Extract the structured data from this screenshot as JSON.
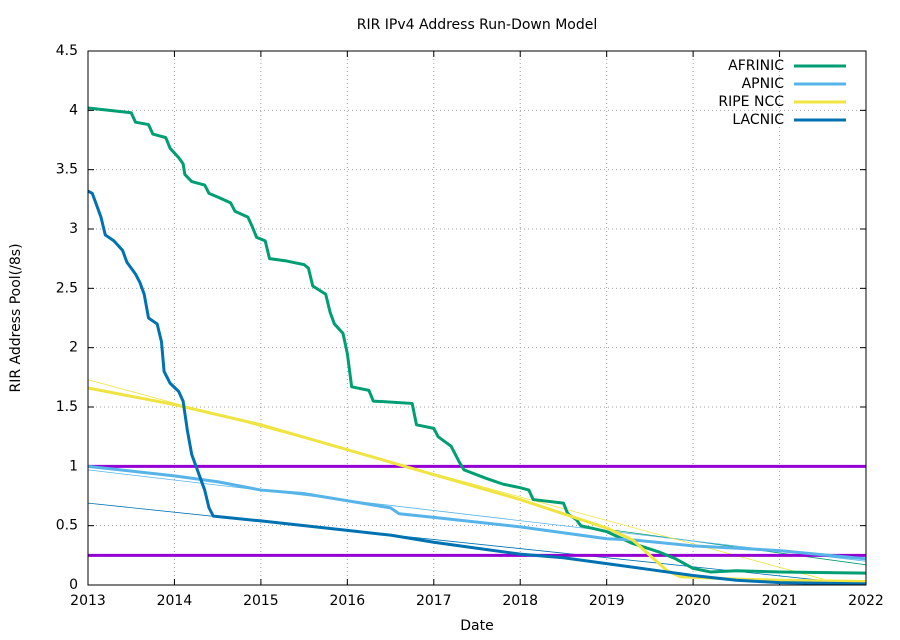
{
  "chart_data": {
    "type": "line",
    "title": "RIR IPv4 Address Run-Down Model",
    "x_label": "Date",
    "y_label": "RIR Address Pool(/8s)",
    "xlim": [
      2013,
      2022
    ],
    "xticks": [
      2013,
      2014,
      2015,
      2016,
      2017,
      2018,
      2019,
      2020,
      2021,
      2022
    ],
    "ylim": [
      0,
      4.5
    ],
    "yticks": [
      0,
      0.5,
      1,
      1.5,
      2,
      2.5,
      3,
      3.5,
      4,
      4.5
    ],
    "grid": true,
    "legend": "top-right",
    "series": [
      {
        "name": "AFRINIC",
        "color": "#009e73",
        "x": [
          2013,
          2013.25,
          2013.5,
          2013.55,
          2013.7,
          2013.75,
          2013.9,
          2013.95,
          2014.05,
          2014.1,
          2014.12,
          2014.2,
          2014.35,
          2014.4,
          2014.5,
          2014.65,
          2014.7,
          2014.85,
          2014.9,
          2014.95,
          2015.05,
          2015.1,
          2015.3,
          2015.5,
          2015.55,
          2015.6,
          2015.75,
          2015.8,
          2015.85,
          2015.95,
          2016.0,
          2016.05,
          2016.25,
          2016.3,
          2016.75,
          2016.8,
          2017.0,
          2017.05,
          2017.2,
          2017.3,
          2017.35,
          2017.6,
          2017.8,
          2018.0,
          2018.1,
          2018.15,
          2018.5,
          2018.55,
          2018.65,
          2018.7,
          2019.0,
          2019.3,
          2019.6,
          2019.8,
          2020.0,
          2020.2,
          2020.5,
          2021.0,
          2022
        ],
        "values": [
          4.02,
          4.0,
          3.98,
          3.9,
          3.88,
          3.8,
          3.77,
          3.68,
          3.6,
          3.55,
          3.46,
          3.4,
          3.37,
          3.3,
          3.27,
          3.22,
          3.15,
          3.1,
          3.02,
          2.93,
          2.9,
          2.75,
          2.73,
          2.7,
          2.67,
          2.52,
          2.45,
          2.3,
          2.2,
          2.12,
          1.95,
          1.67,
          1.64,
          1.55,
          1.53,
          1.35,
          1.32,
          1.25,
          1.17,
          1.03,
          0.97,
          0.9,
          0.85,
          0.82,
          0.8,
          0.72,
          0.69,
          0.6,
          0.55,
          0.5,
          0.45,
          0.35,
          0.28,
          0.22,
          0.14,
          0.11,
          0.12,
          0.11,
          0.1
        ]
      },
      {
        "name": "APNIC",
        "color": "#56b4e9",
        "x": [
          2013,
          2014,
          2014.5,
          2015,
          2015.5,
          2016,
          2016.5,
          2016.6,
          2017,
          2018,
          2019,
          2019.3,
          2020,
          2021,
          2022
        ],
        "values": [
          1.0,
          0.92,
          0.87,
          0.8,
          0.77,
          0.71,
          0.65,
          0.6,
          0.57,
          0.49,
          0.39,
          0.38,
          0.33,
          0.29,
          0.22
        ]
      },
      {
        "name": "RIPE NCC",
        "color": "#f0e442",
        "x": [
          2013,
          2014,
          2015,
          2016,
          2017,
          2018,
          2019,
          2019.3,
          2019.5,
          2019.7,
          2019.85,
          2020.5,
          2021,
          2022
        ],
        "values": [
          1.66,
          1.52,
          1.35,
          1.14,
          0.93,
          0.72,
          0.48,
          0.38,
          0.25,
          0.12,
          0.07,
          0.05,
          0.04,
          0.03
        ]
      },
      {
        "name": "LACNIC",
        "color": "#0072b2",
        "x": [
          2013,
          2013.05,
          2013.1,
          2013.15,
          2013.2,
          2013.3,
          2013.4,
          2013.45,
          2013.55,
          2013.6,
          2013.65,
          2013.7,
          2013.8,
          2013.85,
          2013.88,
          2013.95,
          2014.05,
          2014.1,
          2014.15,
          2014.2,
          2014.25,
          2014.3,
          2014.35,
          2014.4,
          2014.45,
          2015,
          2016,
          2016.5,
          2017,
          2017.5,
          2018,
          2018.5,
          2019,
          2019.5,
          2020,
          2020.5,
          2021,
          2022
        ],
        "values": [
          3.32,
          3.3,
          3.2,
          3.1,
          2.95,
          2.9,
          2.82,
          2.72,
          2.62,
          2.55,
          2.45,
          2.25,
          2.2,
          2.05,
          1.8,
          1.7,
          1.63,
          1.55,
          1.3,
          1.1,
          1.0,
          0.9,
          0.8,
          0.65,
          0.58,
          0.54,
          0.46,
          0.42,
          0.36,
          0.31,
          0.26,
          0.23,
          0.18,
          0.13,
          0.08,
          0.04,
          0.02,
          0.01
        ]
      }
    ],
    "trends": [
      {
        "color": "#009e73",
        "x": [
          2019,
          2022
        ],
        "values": [
          0.47,
          0.17
        ]
      },
      {
        "color": "#56b4e9",
        "x": [
          2013,
          2022
        ],
        "values": [
          0.97,
          0.2
        ]
      },
      {
        "color": "#f0e442",
        "x": [
          2013,
          2021.5
        ],
        "values": [
          1.73,
          0.05
        ]
      },
      {
        "color": "#0072b2",
        "x": [
          2013,
          2022
        ],
        "values": [
          0.69,
          0.0
        ]
      }
    ],
    "hlines": [
      {
        "value": 1,
        "color": "#9400d3"
      },
      {
        "value": 0.25,
        "color": "#9400d3"
      }
    ]
  }
}
